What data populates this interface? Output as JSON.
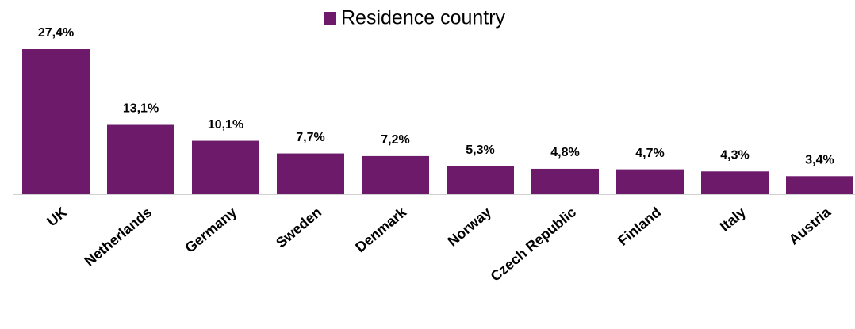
{
  "chart_data": {
    "type": "bar",
    "legend": "Residence country",
    "categories": [
      "UK",
      "Netherlands",
      "Germany",
      "Sweden",
      "Denmark",
      "Norway",
      "Czech Republic",
      "Finland",
      "Italy",
      "Austria"
    ],
    "values": [
      27.4,
      13.1,
      10.1,
      7.7,
      7.2,
      5.3,
      4.8,
      4.7,
      4.3,
      3.4
    ],
    "value_labels": [
      "27,4%",
      "13,1%",
      "10,1%",
      "7,7%",
      "7,2%",
      "5,3%",
      "4,8%",
      "4,7%",
      "4,3%",
      "3,4%"
    ],
    "color": "#6e1a6b"
  }
}
